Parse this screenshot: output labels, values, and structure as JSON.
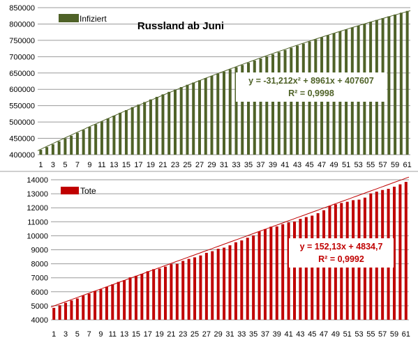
{
  "chart_data": [
    {
      "type": "bar",
      "title": "Russland ab Juni",
      "series": [
        {
          "name": "Infiziert",
          "color": "#4f6228",
          "x": [
            1,
            2,
            3,
            4,
            5,
            6,
            7,
            8,
            9,
            10,
            11,
            12,
            13,
            14,
            15,
            16,
            17,
            18,
            19,
            20,
            21,
            22,
            23,
            24,
            25,
            26,
            27,
            28,
            29,
            30,
            31,
            32,
            33,
            34,
            35,
            36,
            37,
            38,
            39,
            40,
            41,
            42,
            43,
            44,
            45,
            46,
            47,
            48,
            49,
            50,
            51,
            52,
            53,
            54,
            55,
            56,
            57,
            58,
            59,
            60,
            61
          ],
          "values": [
            414878,
            423186,
            431715,
            440538,
            449256,
            458102,
            467073,
            476043,
            485253,
            493023,
            501800,
            510761,
            519458,
            528267,
            536484,
            545458,
            553301,
            561091,
            569063,
            576952,
            584680,
            592280,
            598878,
            606881,
            613994,
            620794,
            627646,
            634437,
            641156,
            647849,
            654405,
            661165,
            667883,
            674515,
            681251,
            687862,
            694230,
            700792,
            707301,
            713936,
            720547,
            727162,
            733699,
            739947,
            746369,
            752797,
            759203,
            765437,
            771546,
            777486,
            783328,
            789190,
            795038,
            800849,
            806720,
            812485,
            818120,
            823515,
            828990,
            834499,
            839981
          ]
        }
      ],
      "trendline": {
        "equation": "y = -31,212x² + 8961x + 407607",
        "r2": "R² = 0,9998",
        "a": -31.212,
        "b": 8961,
        "c": 407607
      },
      "x_ticks": [
        "1",
        "3",
        "5",
        "7",
        "9",
        "11",
        "13",
        "15",
        "17",
        "19",
        "21",
        "23",
        "25",
        "27",
        "29",
        "31",
        "33",
        "35",
        "37",
        "39",
        "41",
        "43",
        "45",
        "47",
        "49",
        "51",
        "53",
        "55",
        "57",
        "59",
        "61"
      ],
      "y_ticks": [
        "400000",
        "450000",
        "500000",
        "550000",
        "600000",
        "650000",
        "700000",
        "750000",
        "800000",
        "850000"
      ],
      "ylim": [
        400000,
        850000
      ],
      "grid": "horizontal",
      "legend_position": "top-left"
    },
    {
      "type": "bar",
      "title": "",
      "series": [
        {
          "name": "Tote",
          "color": "#c00000",
          "x": [
            1,
            2,
            3,
            4,
            5,
            6,
            7,
            8,
            9,
            10,
            11,
            12,
            13,
            14,
            15,
            16,
            17,
            18,
            19,
            20,
            21,
            22,
            23,
            24,
            25,
            26,
            27,
            28,
            29,
            30,
            31,
            32,
            33,
            34,
            35,
            36,
            37,
            38,
            39,
            40,
            41,
            42,
            43,
            44,
            45,
            46,
            47,
            48,
            49,
            50,
            51,
            52,
            53,
            54,
            55,
            56,
            57,
            58,
            59,
            60,
            61
          ],
          "values": [
            4855,
            5037,
            5215,
            5384,
            5520,
            5725,
            5859,
            6054,
            6182,
            6358,
            6532,
            6705,
            6829,
            7031,
            7143,
            7284,
            7468,
            7615,
            7660,
            7800,
            7975,
            8002,
            8206,
            8349,
            8458,
            8594,
            8781,
            8898,
            9073,
            9152,
            9320,
            9536,
            9668,
            9859,
            10027,
            10296,
            10478,
            10650,
            10667,
            10826,
            10956,
            11017,
            11205,
            11335,
            11439,
            11614,
            11823,
            12123,
            12247,
            12342,
            12427,
            12540,
            12580,
            12723,
            13026,
            13151,
            13269,
            13354,
            13504,
            13673,
            13850
          ]
        }
      ],
      "trendline": {
        "equation": "y = 152,13x + 4834,7",
        "r2": "R² = 0,9992",
        "a": 0,
        "b": 152.13,
        "c": 4834.7
      },
      "x_ticks": [
        "1",
        "3",
        "5",
        "7",
        "9",
        "11",
        "13",
        "15",
        "17",
        "19",
        "21",
        "23",
        "25",
        "27",
        "29",
        "31",
        "33",
        "35",
        "37",
        "39",
        "41",
        "43",
        "45",
        "47",
        "49",
        "51",
        "53",
        "55",
        "57",
        "59",
        "61"
      ],
      "y_ticks": [
        "4000",
        "5000",
        "6000",
        "7000",
        "8000",
        "9000",
        "10000",
        "11000",
        "12000",
        "13000",
        "14000"
      ],
      "ylim": [
        4000,
        14000
      ],
      "grid": "horizontal",
      "legend_position": "top-left"
    }
  ]
}
